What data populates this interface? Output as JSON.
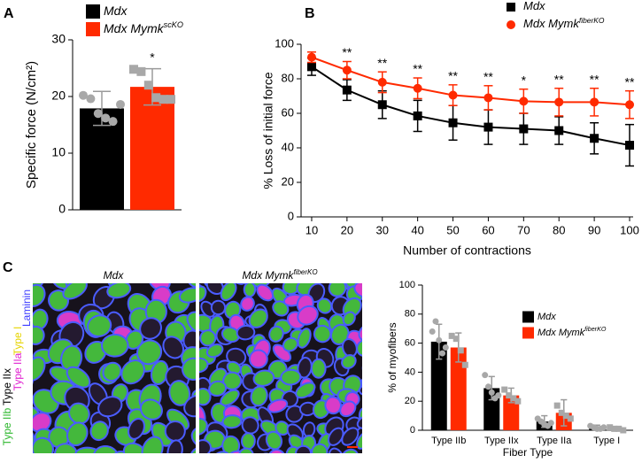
{
  "chart_data": [
    {
      "type": "bar",
      "panel": "A",
      "y_label": "Specific force (N/cm²)",
      "categories": [
        null
      ],
      "ylim": [
        0,
        30
      ],
      "yticks": [
        0,
        10,
        20,
        30
      ],
      "series": [
        {
          "name": "Mdx",
          "color": "#000000",
          "values": [
            17.9
          ],
          "errors": [
            3.0
          ],
          "points": [
            [
              20.2,
              19.6,
              17.0,
              16.2,
              15.6,
              18.6
            ]
          ]
        },
        {
          "name": "Mdx Mymk",
          "superscript": "scKO",
          "color": "#ff2a00",
          "values": [
            21.7
          ],
          "errors": [
            3.2
          ],
          "points": [
            [
              24.8,
              24.4,
              22.0,
              19.8,
              19.5,
              19.5
            ]
          ],
          "significance": [
            "*"
          ]
        }
      ]
    },
    {
      "type": "line",
      "panel": "B",
      "x_label": "Number of contractions",
      "y_label": "% Loss of initial force",
      "x": [
        10,
        20,
        30,
        40,
        50,
        60,
        70,
        80,
        90,
        100
      ],
      "xlim": [
        7,
        101
      ],
      "xticks": [
        10,
        20,
        30,
        40,
        50,
        60,
        70,
        80,
        90,
        100
      ],
      "ylim": [
        0,
        100
      ],
      "yticks": [
        0,
        20,
        40,
        60,
        80,
        100
      ],
      "series": [
        {
          "name": "Mdx",
          "color": "#000000",
          "marker": "square",
          "values": [
            87,
            73.5,
            65,
            58.5,
            54.5,
            52,
            51,
            50,
            45.5,
            41.5
          ],
          "errors": [
            5,
            6,
            8,
            9,
            10,
            10,
            9,
            8,
            9,
            12
          ]
        },
        {
          "name": "Mdx Mymk",
          "superscript": "fiberKO",
          "color": "#ff2a00",
          "marker": "circle",
          "values": [
            92.5,
            85,
            78,
            74.5,
            70.5,
            69,
            67,
            66.5,
            66.5,
            65
          ],
          "errors": [
            3,
            5,
            6,
            6,
            6,
            7,
            7,
            8,
            8,
            8
          ],
          "significance": [
            null,
            "**",
            "**",
            "**",
            "**",
            "**",
            "*",
            "**",
            "**",
            "**"
          ]
        }
      ]
    },
    {
      "type": "bar",
      "panel": "C",
      "x_label": "Fiber Type",
      "y_label": "% of myofibers",
      "categories": [
        "Type IIb",
        "Type IIx",
        "Type IIa",
        "Type I"
      ],
      "ylim": [
        0,
        100
      ],
      "yticks": [
        0,
        20,
        40,
        60,
        80,
        100
      ],
      "series": [
        {
          "name": "Mdx",
          "color": "#000000",
          "values": [
            61,
            29,
            6,
            2
          ],
          "errors": [
            12,
            8,
            4,
            1.5
          ],
          "points": [
            [
              68,
              75,
              62,
              53,
              57
            ],
            [
              38,
              30,
              26,
              22,
              24
            ],
            [
              8,
              6,
              4,
              3,
              5
            ],
            [
              3,
              2,
              1,
              1,
              2
            ]
          ]
        },
        {
          "name": "Mdx Mymk",
          "superscript": "fiberKO",
          "color": "#ff2a00",
          "values": [
            57,
            24,
            12,
            1
          ],
          "errors": [
            10,
            5,
            9,
            1
          ],
          "points": [
            [
              65,
              63,
              55,
              45
            ],
            [
              28,
              24,
              22,
              20
            ],
            [
              17,
              12,
              10,
              8
            ],
            [
              2,
              1,
              1,
              0
            ]
          ]
        }
      ]
    }
  ],
  "micrographs": {
    "left_title": "Mdx",
    "right_title": "Mdx Mymk",
    "right_superscript": "fiberKO",
    "stains": [
      "Laminin",
      "Type I",
      "Type IIa",
      "Type IIx",
      "Type IIb"
    ]
  }
}
